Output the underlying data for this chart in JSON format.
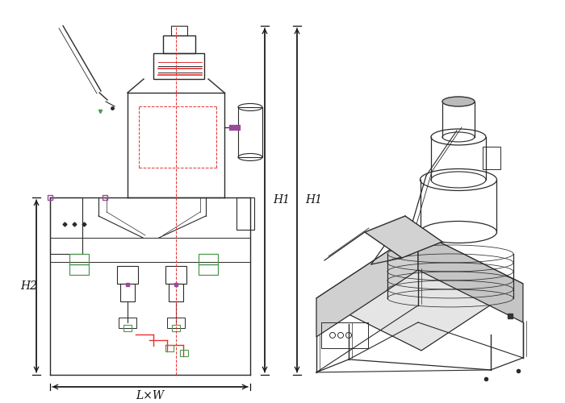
{
  "bg_color": "#ffffff",
  "line_color": "#2a2a2a",
  "red_dashed_color": "#e83030",
  "green_color": "#4a9a4a",
  "magenta_color": "#9a4a9a",
  "dim_color": "#111111",
  "fig_width": 7.0,
  "fig_height": 5.0,
  "H1_label": "H1",
  "H2_label": "H2",
  "LW_label": "L×W"
}
